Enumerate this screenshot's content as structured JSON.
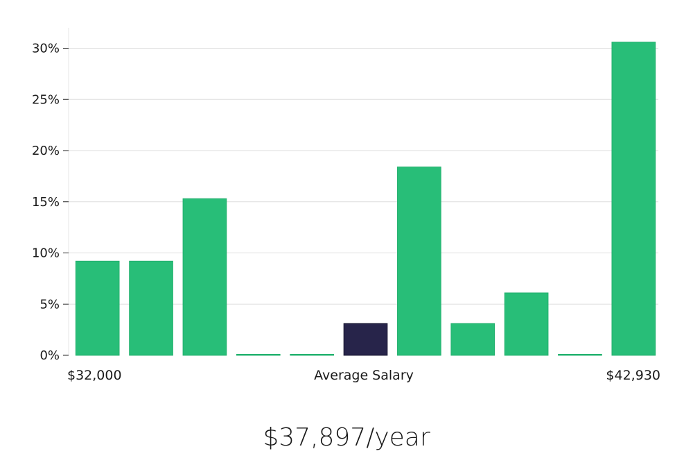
{
  "chart_data": {
    "type": "bar",
    "categories": [
      "1",
      "2",
      "3",
      "4",
      "5",
      "6",
      "7",
      "8",
      "9",
      "10",
      "11"
    ],
    "values": [
      9.2,
      9.2,
      15.3,
      0,
      0,
      3.1,
      18.4,
      3.1,
      6.1,
      0,
      30.6
    ],
    "highlight_index": 5,
    "ylim": [
      0,
      32
    ],
    "yticks": [
      0,
      5,
      10,
      15,
      20,
      25,
      30
    ],
    "ytick_labels": [
      "0%",
      "5%",
      "10%",
      "15%",
      "20%",
      "25%",
      "30%"
    ],
    "grid": true,
    "colors": {
      "bar": "#28be78",
      "highlight": "#27244a",
      "grid": "#dddddd",
      "axis": "#e6e6e6"
    }
  },
  "x_axis": {
    "min_label": "$32,000",
    "center_label": "Average Salary",
    "max_label": "$42,930"
  },
  "headline": {
    "salary": "$37,897/year"
  }
}
